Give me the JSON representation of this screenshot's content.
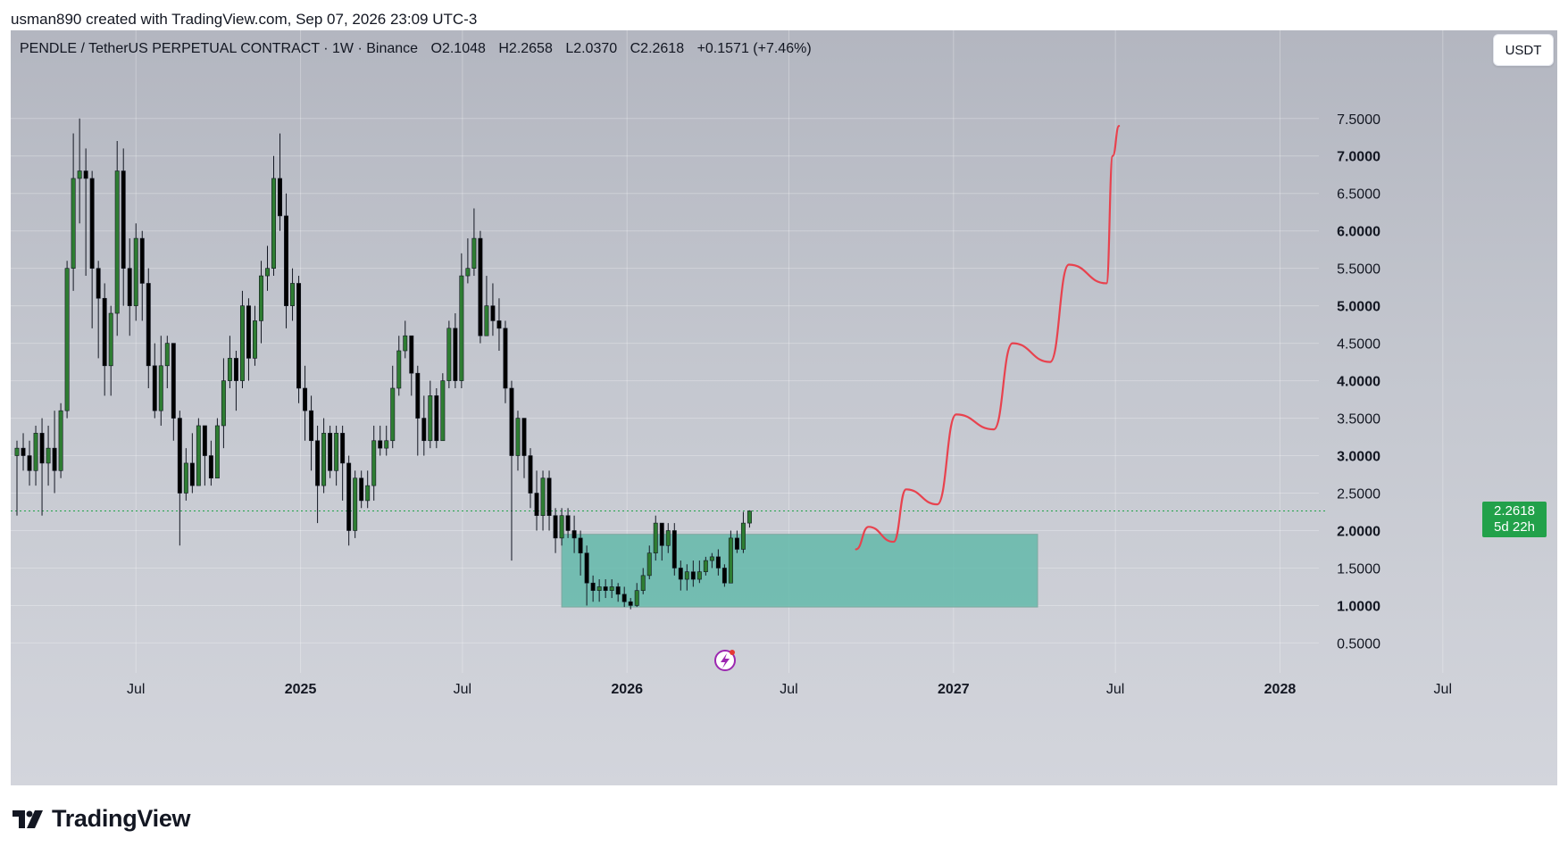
{
  "header": {
    "attribution": "usman890 created with TradingView.com, Sep 07, 2026 23:09 UTC-3"
  },
  "legend": {
    "symbol": "PENDLE / TetherUS PERPETUAL CONTRACT · 1W · Binance",
    "open": "O2.1048",
    "high": "H2.2658",
    "low": "L2.0370",
    "close": "C2.2618",
    "change": "+0.1571 (+7.46%)"
  },
  "currency_button": "USDT",
  "last_price": {
    "value": "2.2618",
    "countdown": "5d 22h"
  },
  "branding": {
    "logo_text": "TradingView"
  },
  "colors": {
    "up_candle": "#2e7d32",
    "down_candle": "#000000",
    "zone_fill": "#5fb8a8",
    "projection": "#e8424e",
    "price_tag": "#22a14a",
    "accent_icon": "#9c27b0"
  },
  "chart_data": {
    "type": "candlestick",
    "timeframe": "1W",
    "y_axis": {
      "ticks": [
        "0.5000",
        "1.0000",
        "1.5000",
        "2.0000",
        "2.5000",
        "3.0000",
        "3.5000",
        "4.0000",
        "4.5000",
        "5.0000",
        "5.5000",
        "6.0000",
        "6.5000",
        "7.0000",
        "7.5000"
      ],
      "ylim": [
        0.1,
        8.2
      ]
    },
    "x_axis": {
      "ticks": [
        "Jul",
        "2025",
        "Jul",
        "2026",
        "Jul",
        "2027",
        "Jul",
        "2028",
        "Jul"
      ],
      "bold": [
        "2025",
        "2026",
        "2027",
        "2028"
      ]
    },
    "xlim": [
      "2024-02-12",
      "2028-11-06"
    ],
    "candle_start": "2024-02-19",
    "candles": [
      [
        3.0,
        3.1,
        3.2,
        2.2
      ],
      [
        3.1,
        3.0,
        3.3,
        2.8
      ],
      [
        3.0,
        2.8,
        3.2,
        2.6
      ],
      [
        2.8,
        3.3,
        3.4,
        2.6
      ],
      [
        3.3,
        2.9,
        3.5,
        2.2
      ],
      [
        2.9,
        3.1,
        3.4,
        2.6
      ],
      [
        3.1,
        2.8,
        3.6,
        2.5
      ],
      [
        2.8,
        3.6,
        3.7,
        2.7
      ],
      [
        3.6,
        5.5,
        5.6,
        3.5
      ],
      [
        5.5,
        6.7,
        7.3,
        5.2
      ],
      [
        6.7,
        6.8,
        7.5,
        6.1
      ],
      [
        6.8,
        6.7,
        7.1,
        5.4
      ],
      [
        6.7,
        5.5,
        6.8,
        4.7
      ],
      [
        5.5,
        5.1,
        5.6,
        4.3
      ],
      [
        5.1,
        4.2,
        5.3,
        3.8
      ],
      [
        4.2,
        4.9,
        5.0,
        3.8
      ],
      [
        4.9,
        6.8,
        7.2,
        4.6
      ],
      [
        6.8,
        5.5,
        7.1,
        5.0
      ],
      [
        5.5,
        5.0,
        5.9,
        4.6
      ],
      [
        5.0,
        5.9,
        6.1,
        4.8
      ],
      [
        5.9,
        5.3,
        6.0,
        4.8
      ],
      [
        5.3,
        4.2,
        5.5,
        3.9
      ],
      [
        4.2,
        3.6,
        4.5,
        3.5
      ],
      [
        3.6,
        4.2,
        4.6,
        3.4
      ],
      [
        4.2,
        4.5,
        4.6,
        3.9
      ],
      [
        4.5,
        3.5,
        4.5,
        3.2
      ],
      [
        3.5,
        2.5,
        3.6,
        1.8
      ],
      [
        2.5,
        2.9,
        3.1,
        2.4
      ],
      [
        2.9,
        2.6,
        3.3,
        2.5
      ],
      [
        2.6,
        3.4,
        3.5,
        2.6
      ],
      [
        3.4,
        3.0,
        3.4,
        2.6
      ],
      [
        3.0,
        2.7,
        3.2,
        2.6
      ],
      [
        2.7,
        3.4,
        3.5,
        2.7
      ],
      [
        3.4,
        4.0,
        4.3,
        3.1
      ],
      [
        4.0,
        4.3,
        4.6,
        3.9
      ],
      [
        4.3,
        4.0,
        4.4,
        3.6
      ],
      [
        4.0,
        5.0,
        5.2,
        3.9
      ],
      [
        5.0,
        4.3,
        5.1,
        4.0
      ],
      [
        4.3,
        4.8,
        5.0,
        4.2
      ],
      [
        4.8,
        5.4,
        5.6,
        4.5
      ],
      [
        5.4,
        5.5,
        5.8,
        5.2
      ],
      [
        5.5,
        6.7,
        7.0,
        5.4
      ],
      [
        6.7,
        6.2,
        7.3,
        6.0
      ],
      [
        6.2,
        5.0,
        6.5,
        4.7
      ],
      [
        5.0,
        5.3,
        5.5,
        4.8
      ],
      [
        5.3,
        3.9,
        5.4,
        3.7
      ],
      [
        3.9,
        3.6,
        4.2,
        3.2
      ],
      [
        3.6,
        3.2,
        3.8,
        2.8
      ],
      [
        3.2,
        2.6,
        3.4,
        2.1
      ],
      [
        2.6,
        3.3,
        3.5,
        2.5
      ],
      [
        3.3,
        2.8,
        3.4,
        2.7
      ],
      [
        2.8,
        3.3,
        3.4,
        2.6
      ],
      [
        3.3,
        2.9,
        3.4,
        2.4
      ],
      [
        2.9,
        2.0,
        3.0,
        1.8
      ],
      [
        2.0,
        2.7,
        2.8,
        1.9
      ],
      [
        2.7,
        2.4,
        2.8,
        2.3
      ],
      [
        2.4,
        2.6,
        2.8,
        2.3
      ],
      [
        2.6,
        3.2,
        3.4,
        2.4
      ],
      [
        3.2,
        3.1,
        3.4,
        3.0
      ],
      [
        3.1,
        3.2,
        3.4,
        3.0
      ],
      [
        3.2,
        3.9,
        4.2,
        3.1
      ],
      [
        3.9,
        4.4,
        4.6,
        3.8
      ],
      [
        4.4,
        4.6,
        4.8,
        4.3
      ],
      [
        4.6,
        4.1,
        4.6,
        3.8
      ],
      [
        4.1,
        3.5,
        4.2,
        3.0
      ],
      [
        3.5,
        3.2,
        3.8,
        3.0
      ],
      [
        3.2,
        3.8,
        4.0,
        3.1
      ],
      [
        3.8,
        3.2,
        3.9,
        3.1
      ],
      [
        3.2,
        4.0,
        4.1,
        3.2
      ],
      [
        4.0,
        4.7,
        4.8,
        3.9
      ],
      [
        4.7,
        4.0,
        4.9,
        3.9
      ],
      [
        4.0,
        5.4,
        5.7,
        3.9
      ],
      [
        5.4,
        5.5,
        5.9,
        5.3
      ],
      [
        5.5,
        5.9,
        6.3,
        5.4
      ],
      [
        5.9,
        4.6,
        6.0,
        4.5
      ],
      [
        4.6,
        5.0,
        5.4,
        4.6
      ],
      [
        5.0,
        4.8,
        5.3,
        4.6
      ],
      [
        4.8,
        4.7,
        5.1,
        4.4
      ],
      [
        4.7,
        3.9,
        4.8,
        3.7
      ],
      [
        3.9,
        3.0,
        4.0,
        1.6
      ],
      [
        3.0,
        3.5,
        3.6,
        2.8
      ],
      [
        3.5,
        3.0,
        3.5,
        2.7
      ],
      [
        3.0,
        2.5,
        3.1,
        2.3
      ],
      [
        2.5,
        2.2,
        2.8,
        2.0
      ],
      [
        2.2,
        2.7,
        2.8,
        2.0
      ],
      [
        2.7,
        2.2,
        2.8,
        2.0
      ],
      [
        2.2,
        1.9,
        2.3,
        1.7
      ],
      [
        1.9,
        2.2,
        2.3,
        1.8
      ],
      [
        2.2,
        2.0,
        2.3,
        1.9
      ],
      [
        2.0,
        1.9,
        2.2,
        1.7
      ],
      [
        1.9,
        1.7,
        2.0,
        1.4
      ],
      [
        1.7,
        1.3,
        1.8,
        1.0
      ],
      [
        1.3,
        1.2,
        1.4,
        1.05
      ],
      [
        1.2,
        1.25,
        1.35,
        1.05
      ],
      [
        1.25,
        1.2,
        1.35,
        1.1
      ],
      [
        1.2,
        1.25,
        1.35,
        1.1
      ],
      [
        1.25,
        1.15,
        1.3,
        1.05
      ],
      [
        1.15,
        1.05,
        1.25,
        0.98
      ],
      [
        1.05,
        1.0,
        1.1,
        0.95
      ],
      [
        1.0,
        1.2,
        1.3,
        0.98
      ],
      [
        1.2,
        1.4,
        1.5,
        1.15
      ],
      [
        1.4,
        1.7,
        1.8,
        1.35
      ],
      [
        1.7,
        2.1,
        2.2,
        1.6
      ],
      [
        2.1,
        1.8,
        2.1,
        1.6
      ],
      [
        1.8,
        2.0,
        2.1,
        1.7
      ],
      [
        2.0,
        1.5,
        2.1,
        1.4
      ],
      [
        1.5,
        1.35,
        1.6,
        1.2
      ],
      [
        1.35,
        1.45,
        1.55,
        1.2
      ],
      [
        1.45,
        1.35,
        1.6,
        1.25
      ],
      [
        1.35,
        1.45,
        1.6,
        1.3
      ],
      [
        1.45,
        1.6,
        1.65,
        1.4
      ],
      [
        1.6,
        1.65,
        1.7,
        1.5
      ],
      [
        1.65,
        1.5,
        1.75,
        1.4
      ],
      [
        1.5,
        1.3,
        1.55,
        1.25
      ],
      [
        1.3,
        1.9,
        2.0,
        1.3
      ],
      [
        1.9,
        1.75,
        2.0,
        1.7
      ],
      [
        1.75,
        2.1,
        2.25,
        1.7
      ],
      [
        2.1,
        2.26,
        2.27,
        2.04
      ]
    ],
    "current_price": 2.2618,
    "zone": {
      "x_start": "2025-10-20",
      "x_end": "2027-04-05",
      "y_low": 0.98,
      "y_high": 1.95
    },
    "projection_path": [
      [
        "2026-09-14",
        1.75
      ],
      [
        "2026-09-28",
        2.05
      ],
      [
        "2026-10-26",
        1.85
      ],
      [
        "2026-11-09",
        2.55
      ],
      [
        "2026-12-14",
        2.35
      ],
      [
        "2027-01-04",
        3.55
      ],
      [
        "2027-02-15",
        3.35
      ],
      [
        "2027-03-08",
        4.5
      ],
      [
        "2027-04-19",
        4.25
      ],
      [
        "2027-05-10",
        5.55
      ],
      [
        "2027-06-21",
        5.3
      ],
      [
        "2027-06-28",
        7.0
      ],
      [
        "2027-07-05",
        7.4
      ]
    ]
  }
}
